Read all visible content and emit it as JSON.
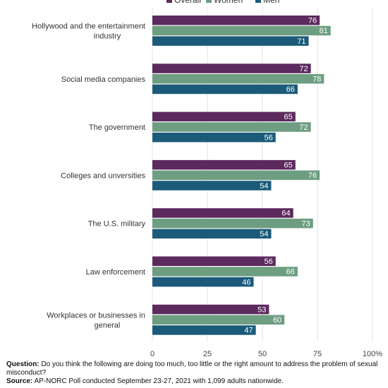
{
  "chart_data": {
    "type": "bar",
    "orientation": "horizontal",
    "categories": [
      "Hollywood and the entertainment industry",
      "Social media companies",
      "The government",
      "Colleges and unversities",
      "The U.S. military",
      "Law enforcement",
      "Workplaces or businesses in general"
    ],
    "series": [
      {
        "name": "Overall",
        "values": [
          76,
          72,
          65,
          65,
          64,
          56,
          53
        ]
      },
      {
        "name": "Women",
        "values": [
          81,
          78,
          72,
          76,
          73,
          66,
          60
        ]
      },
      {
        "name": "Men",
        "values": [
          71,
          66,
          56,
          54,
          54,
          46,
          47
        ]
      }
    ],
    "xlim": [
      0,
      100
    ],
    "xticks": [
      "0",
      "25",
      "50",
      "75",
      "100%"
    ],
    "legend_position": "top",
    "grid": "vertical",
    "colors": {
      "Overall": "#5c2a5e",
      "Women": "#6e9e82",
      "Men": "#1b5b79"
    }
  },
  "footer": {
    "question_label": "Question:",
    "question_text": "Do you think the following are doing too much, too little or the right amount to address the problem of sexual misconduct?",
    "source_label": "Source:",
    "source_text": "AP-NORC Poll conducted September 23-27, 2021 with 1,099 adults nationwide."
  }
}
